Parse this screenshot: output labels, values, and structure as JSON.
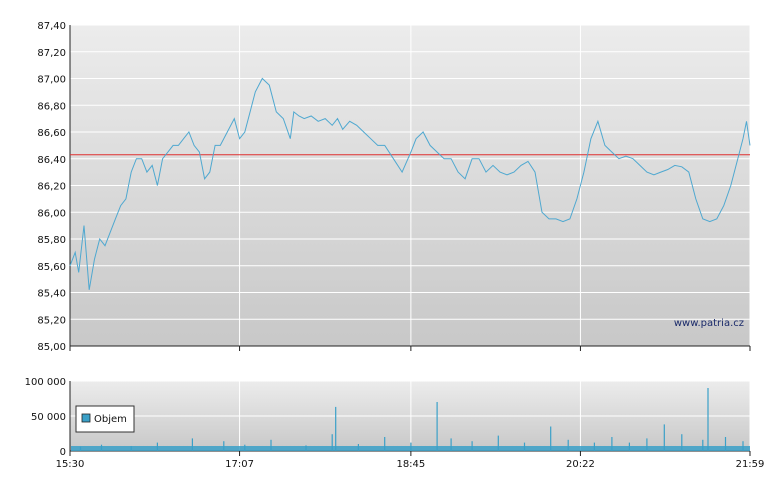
{
  "chart_data": [
    {
      "type": "line",
      "x_range": [
        "15:30",
        "21:59"
      ],
      "x_ticks": [
        "15:30",
        "17:07",
        "18:45",
        "20:22",
        "21:59"
      ],
      "ylim": [
        85.0,
        87.4
      ],
      "y_ticks": [
        "85,00",
        "85,20",
        "85,40",
        "85,60",
        "85,80",
        "86,00",
        "86,20",
        "86,40",
        "86,60",
        "86,80",
        "87,00",
        "87,20",
        "87,40"
      ],
      "reference_line": 86.43,
      "grid": true,
      "watermark": "www.patria.cz",
      "colors": {
        "line": "#4fa8d0",
        "reference": "#e03030",
        "background_top": "#ececec",
        "background_bottom": "#c8c8c8"
      },
      "series": [
        {
          "x": [
            "15:30",
            "15:33",
            "15:35",
            "15:38",
            "15:41",
            "15:44",
            "15:47",
            "15:50",
            "15:53",
            "15:56",
            "15:59",
            "16:02",
            "16:05",
            "16:08",
            "16:11",
            "16:14",
            "16:17",
            "16:20",
            "16:23",
            "16:26",
            "16:29",
            "16:32",
            "16:35",
            "16:38",
            "16:41",
            "16:44",
            "16:47",
            "16:50",
            "16:53",
            "16:56",
            "17:00",
            "17:04",
            "17:07",
            "17:10",
            "17:13",
            "17:16",
            "17:20",
            "17:24",
            "17:28",
            "17:32",
            "17:36",
            "17:38",
            "17:41",
            "17:44",
            "17:48",
            "17:52",
            "17:56",
            "18:00",
            "18:03",
            "18:06",
            "18:10",
            "18:14",
            "18:18",
            "18:22",
            "18:26",
            "18:30",
            "18:35",
            "18:40",
            "18:45",
            "18:48",
            "18:52",
            "18:56",
            "19:00",
            "19:04",
            "19:08",
            "19:12",
            "19:16",
            "19:20",
            "19:24",
            "19:28",
            "19:32",
            "19:36",
            "19:40",
            "19:44",
            "19:48",
            "19:52",
            "19:56",
            "20:00",
            "20:04",
            "20:08",
            "20:12",
            "20:16",
            "20:20",
            "20:24",
            "20:28",
            "20:32",
            "20:36",
            "20:40",
            "20:44",
            "20:48",
            "20:52",
            "20:56",
            "21:00",
            "21:04",
            "21:08",
            "21:12",
            "21:16",
            "21:20",
            "21:24",
            "21:28",
            "21:32",
            "21:36",
            "21:40",
            "21:44",
            "21:48",
            "21:52",
            "21:55",
            "21:57",
            "21:59"
          ],
          "y": [
            85.6,
            85.7,
            85.55,
            85.9,
            85.42,
            85.65,
            85.8,
            85.75,
            85.85,
            85.95,
            86.05,
            86.1,
            86.3,
            86.4,
            86.4,
            86.3,
            86.35,
            86.2,
            86.4,
            86.45,
            86.5,
            86.5,
            86.55,
            86.6,
            86.5,
            86.45,
            86.25,
            86.3,
            86.5,
            86.5,
            86.6,
            86.7,
            86.55,
            86.6,
            86.75,
            86.9,
            87.0,
            86.95,
            86.75,
            86.7,
            86.55,
            86.75,
            86.72,
            86.7,
            86.72,
            86.68,
            86.7,
            86.65,
            86.7,
            86.62,
            86.68,
            86.65,
            86.6,
            86.55,
            86.5,
            86.5,
            86.4,
            86.3,
            86.45,
            86.55,
            86.6,
            86.5,
            86.45,
            86.4,
            86.4,
            86.3,
            86.25,
            86.4,
            86.4,
            86.3,
            86.35,
            86.3,
            86.28,
            86.3,
            86.35,
            86.38,
            86.3,
            86.0,
            85.95,
            85.95,
            85.93,
            85.95,
            86.1,
            86.3,
            86.55,
            86.68,
            86.5,
            86.45,
            86.4,
            86.42,
            86.4,
            86.35,
            86.3,
            86.28,
            86.3,
            86.32,
            86.35,
            86.34,
            86.3,
            86.1,
            85.95,
            85.93,
            85.95,
            86.05,
            86.2,
            86.4,
            86.55,
            86.68,
            86.5
          ]
        }
      ]
    },
    {
      "type": "bar",
      "x_range": [
        "15:30",
        "21:59"
      ],
      "ylim": [
        0,
        100000
      ],
      "y_ticks": [
        "0",
        "50 000",
        "100 000"
      ],
      "grid": true,
      "legend": "Objem",
      "legend_position": "bottom-left",
      "colors": {
        "bar": "#3aa0c8"
      },
      "series": [
        {
          "name": "Objem",
          "x": [
            "15:36",
            "15:48",
            "16:05",
            "16:20",
            "16:40",
            "16:58",
            "17:10",
            "17:25",
            "17:45",
            "18:00",
            "18:02",
            "18:15",
            "18:30",
            "18:45",
            "19:00",
            "19:08",
            "19:20",
            "19:35",
            "19:50",
            "20:05",
            "20:15",
            "20:30",
            "20:40",
            "20:50",
            "21:00",
            "21:10",
            "21:20",
            "21:32",
            "21:35",
            "21:45",
            "21:55"
          ],
          "values": [
            6000,
            9000,
            7000,
            12000,
            18000,
            14000,
            9000,
            16000,
            8000,
            24000,
            63000,
            10000,
            20000,
            12000,
            70000,
            18000,
            14000,
            22000,
            12000,
            35000,
            16000,
            12000,
            20000,
            12000,
            18000,
            38000,
            24000,
            16000,
            90000,
            20000,
            14000
          ]
        }
      ]
    }
  ]
}
